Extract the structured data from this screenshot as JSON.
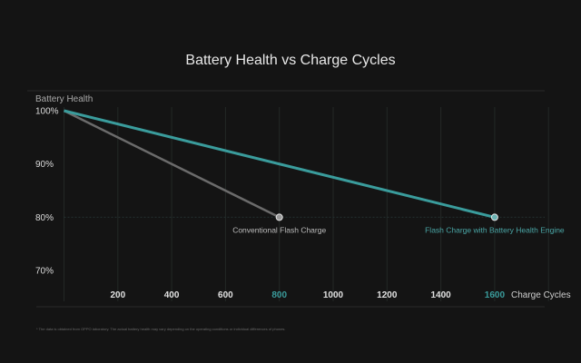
{
  "chart_data": {
    "type": "line",
    "title": "Battery Health vs Charge Cycles",
    "xlabel": "Charge Cycles",
    "ylabel": "Battery Health",
    "xlim": [
      0,
      1800
    ],
    "ylim": [
      66,
      100
    ],
    "x_ticks": [
      200,
      400,
      600,
      800,
      1000,
      1200,
      1400,
      1600
    ],
    "x_tick_labels": [
      "200",
      "400",
      "600",
      "800",
      "1000",
      "1200",
      "1400",
      "1600"
    ],
    "highlighted_x_ticks": [
      800,
      1600
    ],
    "y_ticks": [
      100,
      90,
      80,
      70
    ],
    "y_tick_labels": [
      "100%",
      "90%",
      "80%",
      "70%"
    ],
    "grid": true,
    "series": [
      {
        "name": "Conventional Flash Charge",
        "color": "#6b6b6b",
        "label_color": "#bdbdbd",
        "x": [
          0,
          800
        ],
        "y": [
          100,
          80
        ]
      },
      {
        "name": "Flash Charge with Battery Health Engine",
        "color": "#3a9c9c",
        "label_color": "#4aa6a6",
        "x": [
          0,
          1600
        ],
        "y": [
          100,
          80
        ]
      }
    ]
  },
  "colors": {
    "background": "#141414",
    "accent": "#3a9c9c",
    "text": "#e8e8e8"
  },
  "footnote": "* The data is obtained from OPPO laboratory. The actual battery health may vary depending on the operating conditions or individual differences of phones."
}
